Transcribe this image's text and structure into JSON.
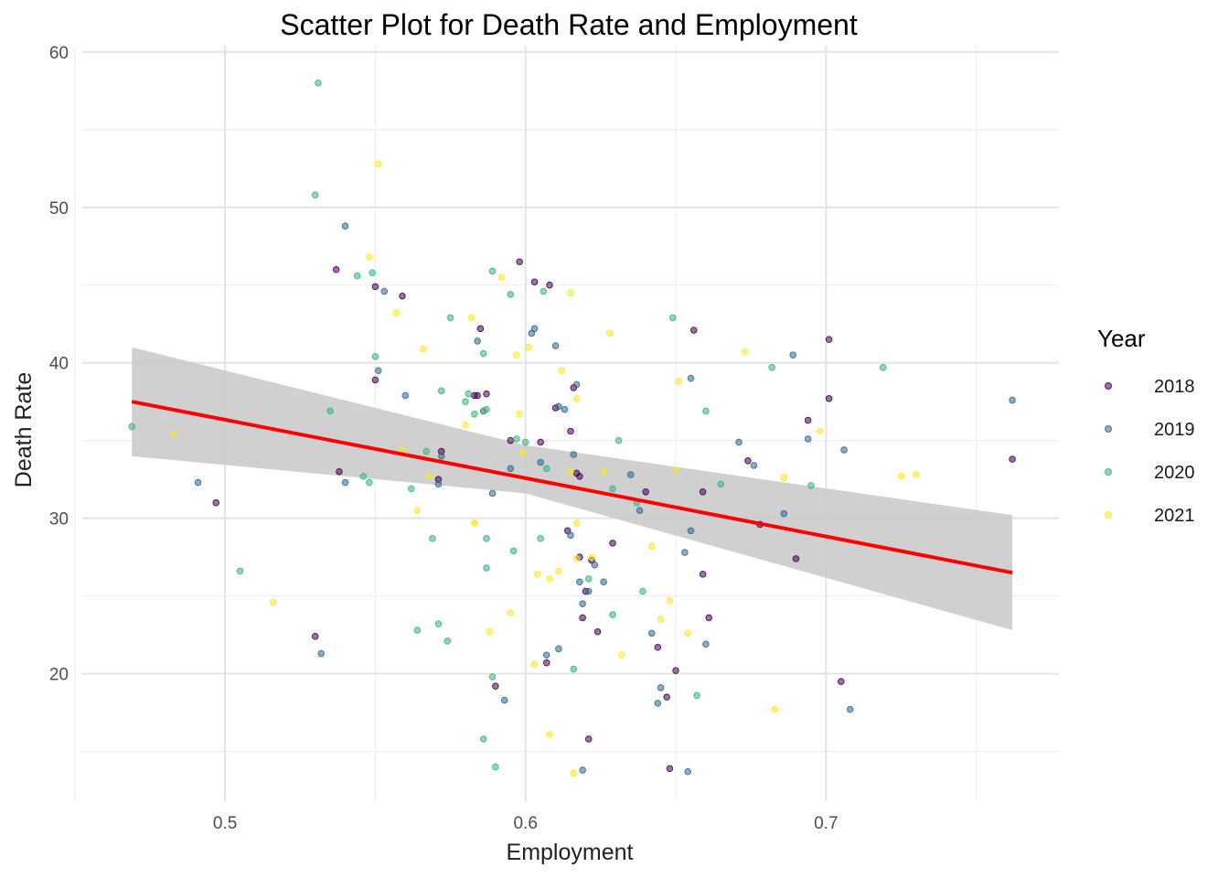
{
  "chart_data": {
    "type": "scatter",
    "title": "Scatter Plot for Death Rate and Employment",
    "xlabel": "Employment",
    "ylabel": "Death Rate",
    "xlim": [
      0.4525,
      0.7775
    ],
    "ylim": [
      11.8,
      60.4
    ],
    "x_ticks": [
      0.5,
      0.6,
      0.7
    ],
    "x_tick_labels": [
      "0.5",
      "0.6",
      "0.7"
    ],
    "y_ticks": [
      20,
      30,
      40,
      50,
      60
    ],
    "y_tick_labels": [
      "20",
      "30",
      "40",
      "50",
      "60"
    ],
    "grid": true,
    "legend": {
      "title": "Year",
      "position": "right"
    },
    "trend": {
      "type": "linear",
      "color": "#ff0000",
      "band_color": "#c8c8c8",
      "line": [
        [
          0.469,
          37.5
        ],
        [
          0.762,
          26.5
        ]
      ],
      "band_upper": [
        [
          0.469,
          41.0
        ],
        [
          0.6,
          34.7
        ],
        [
          0.762,
          30.2
        ]
      ],
      "band_lower": [
        [
          0.469,
          34.0
        ],
        [
          0.6,
          31.6
        ],
        [
          0.762,
          22.8
        ]
      ]
    },
    "series": [
      {
        "name": "2018",
        "color": "#440154",
        "points": [
          [
            0.497,
            31.0
          ],
          [
            0.53,
            22.4
          ],
          [
            0.537,
            46.0
          ],
          [
            0.538,
            33.0
          ],
          [
            0.55,
            44.9
          ],
          [
            0.55,
            38.9
          ],
          [
            0.559,
            44.3
          ],
          [
            0.571,
            32.5
          ],
          [
            0.572,
            34.3
          ],
          [
            0.583,
            37.9
          ],
          [
            0.584,
            37.9
          ],
          [
            0.585,
            42.2
          ],
          [
            0.587,
            38.0
          ],
          [
            0.59,
            19.2
          ],
          [
            0.595,
            35.0
          ],
          [
            0.598,
            46.5
          ],
          [
            0.603,
            45.2
          ],
          [
            0.605,
            34.9
          ],
          [
            0.607,
            20.7
          ],
          [
            0.608,
            45.0
          ],
          [
            0.61,
            37.1
          ],
          [
            0.614,
            29.2
          ],
          [
            0.615,
            35.6
          ],
          [
            0.616,
            38.4
          ],
          [
            0.617,
            32.9
          ],
          [
            0.618,
            32.7
          ],
          [
            0.618,
            27.5
          ],
          [
            0.619,
            23.6
          ],
          [
            0.62,
            25.3
          ],
          [
            0.621,
            15.8
          ],
          [
            0.622,
            27.3
          ],
          [
            0.624,
            22.7
          ],
          [
            0.629,
            28.4
          ],
          [
            0.64,
            31.7
          ],
          [
            0.644,
            21.7
          ],
          [
            0.647,
            18.5
          ],
          [
            0.648,
            13.9
          ],
          [
            0.65,
            20.2
          ],
          [
            0.656,
            42.1
          ],
          [
            0.659,
            26.4
          ],
          [
            0.659,
            31.7
          ],
          [
            0.661,
            23.6
          ],
          [
            0.674,
            33.7
          ],
          [
            0.678,
            29.6
          ],
          [
            0.69,
            27.4
          ],
          [
            0.694,
            36.3
          ],
          [
            0.701,
            41.5
          ],
          [
            0.701,
            37.7
          ],
          [
            0.705,
            19.5
          ],
          [
            0.762,
            33.8
          ]
        ]
      },
      {
        "name": "2019",
        "color": "#31688e",
        "points": [
          [
            0.491,
            32.3
          ],
          [
            0.532,
            21.3
          ],
          [
            0.54,
            48.8
          ],
          [
            0.54,
            32.3
          ],
          [
            0.551,
            39.5
          ],
          [
            0.553,
            44.6
          ],
          [
            0.56,
            37.9
          ],
          [
            0.571,
            32.2
          ],
          [
            0.572,
            34.0
          ],
          [
            0.584,
            41.4
          ],
          [
            0.586,
            36.9
          ],
          [
            0.589,
            31.6
          ],
          [
            0.593,
            18.3
          ],
          [
            0.595,
            33.2
          ],
          [
            0.602,
            41.9
          ],
          [
            0.603,
            42.2
          ],
          [
            0.605,
            33.6
          ],
          [
            0.607,
            21.2
          ],
          [
            0.61,
            41.1
          ],
          [
            0.611,
            37.2
          ],
          [
            0.611,
            21.6
          ],
          [
            0.613,
            37.0
          ],
          [
            0.615,
            28.9
          ],
          [
            0.616,
            34.1
          ],
          [
            0.617,
            38.6
          ],
          [
            0.618,
            25.9
          ],
          [
            0.619,
            24.5
          ],
          [
            0.619,
            13.8
          ],
          [
            0.621,
            25.3
          ],
          [
            0.623,
            27.0
          ],
          [
            0.626,
            25.9
          ],
          [
            0.635,
            32.8
          ],
          [
            0.638,
            30.5
          ],
          [
            0.642,
            22.6
          ],
          [
            0.644,
            18.1
          ],
          [
            0.645,
            19.1
          ],
          [
            0.653,
            27.8
          ],
          [
            0.654,
            13.7
          ],
          [
            0.655,
            39.0
          ],
          [
            0.655,
            29.2
          ],
          [
            0.66,
            21.9
          ],
          [
            0.671,
            34.9
          ],
          [
            0.676,
            33.4
          ],
          [
            0.686,
            30.3
          ],
          [
            0.689,
            40.5
          ],
          [
            0.694,
            35.1
          ],
          [
            0.706,
            34.4
          ],
          [
            0.708,
            17.7
          ],
          [
            0.762,
            37.6
          ]
        ]
      },
      {
        "name": "2020",
        "color": "#35b779",
        "points": [
          [
            0.469,
            35.9
          ],
          [
            0.505,
            26.6
          ],
          [
            0.53,
            50.8
          ],
          [
            0.531,
            58.0
          ],
          [
            0.535,
            36.9
          ],
          [
            0.544,
            45.6
          ],
          [
            0.546,
            32.7
          ],
          [
            0.548,
            32.3
          ],
          [
            0.549,
            45.8
          ],
          [
            0.55,
            40.4
          ],
          [
            0.562,
            31.9
          ],
          [
            0.564,
            22.8
          ],
          [
            0.567,
            34.3
          ],
          [
            0.569,
            28.7
          ],
          [
            0.571,
            23.2
          ],
          [
            0.572,
            38.2
          ],
          [
            0.574,
            22.1
          ],
          [
            0.575,
            42.9
          ],
          [
            0.58,
            37.5
          ],
          [
            0.581,
            38.0
          ],
          [
            0.583,
            36.7
          ],
          [
            0.586,
            40.6
          ],
          [
            0.586,
            15.8
          ],
          [
            0.587,
            37.0
          ],
          [
            0.587,
            28.7
          ],
          [
            0.587,
            26.8
          ],
          [
            0.589,
            19.8
          ],
          [
            0.589,
            45.9
          ],
          [
            0.59,
            14.0
          ],
          [
            0.595,
            44.4
          ],
          [
            0.596,
            27.9
          ],
          [
            0.597,
            35.1
          ],
          [
            0.6,
            34.9
          ],
          [
            0.605,
            28.7
          ],
          [
            0.606,
            44.6
          ],
          [
            0.607,
            33.2
          ],
          [
            0.616,
            20.3
          ],
          [
            0.621,
            26.1
          ],
          [
            0.629,
            23.8
          ],
          [
            0.629,
            31.9
          ],
          [
            0.631,
            35.0
          ],
          [
            0.637,
            31.0
          ],
          [
            0.639,
            25.3
          ],
          [
            0.649,
            42.9
          ],
          [
            0.657,
            18.6
          ],
          [
            0.66,
            36.9
          ],
          [
            0.665,
            32.2
          ],
          [
            0.682,
            39.7
          ],
          [
            0.695,
            32.1
          ],
          [
            0.719,
            39.7
          ]
        ]
      },
      {
        "name": "2021",
        "color": "#fde725",
        "points": [
          [
            0.483,
            35.4
          ],
          [
            0.516,
            24.6
          ],
          [
            0.548,
            46.8
          ],
          [
            0.551,
            52.8
          ],
          [
            0.557,
            43.2
          ],
          [
            0.559,
            34.4
          ],
          [
            0.564,
            30.5
          ],
          [
            0.566,
            40.9
          ],
          [
            0.568,
            32.7
          ],
          [
            0.58,
            36.0
          ],
          [
            0.582,
            42.9
          ],
          [
            0.583,
            29.7
          ],
          [
            0.583,
            29.7
          ],
          [
            0.588,
            22.7
          ],
          [
            0.592,
            45.5
          ],
          [
            0.595,
            23.9
          ],
          [
            0.597,
            40.5
          ],
          [
            0.598,
            36.7
          ],
          [
            0.599,
            34.2
          ],
          [
            0.601,
            41.0
          ],
          [
            0.603,
            20.6
          ],
          [
            0.604,
            26.4
          ],
          [
            0.608,
            16.1
          ],
          [
            0.608,
            26.1
          ],
          [
            0.611,
            26.6
          ],
          [
            0.612,
            39.5
          ],
          [
            0.615,
            44.5
          ],
          [
            0.615,
            33.0
          ],
          [
            0.616,
            13.6
          ],
          [
            0.617,
            27.4
          ],
          [
            0.617,
            29.7
          ],
          [
            0.617,
            37.7
          ],
          [
            0.622,
            27.5
          ],
          [
            0.626,
            33.0
          ],
          [
            0.628,
            41.9
          ],
          [
            0.632,
            21.2
          ],
          [
            0.642,
            28.2
          ],
          [
            0.645,
            23.5
          ],
          [
            0.648,
            24.7
          ],
          [
            0.65,
            33.1
          ],
          [
            0.651,
            38.8
          ],
          [
            0.654,
            22.6
          ],
          [
            0.673,
            40.7
          ],
          [
            0.683,
            17.7
          ],
          [
            0.686,
            32.6
          ],
          [
            0.698,
            35.6
          ],
          [
            0.725,
            32.7
          ],
          [
            0.73,
            32.8
          ]
        ]
      }
    ]
  }
}
